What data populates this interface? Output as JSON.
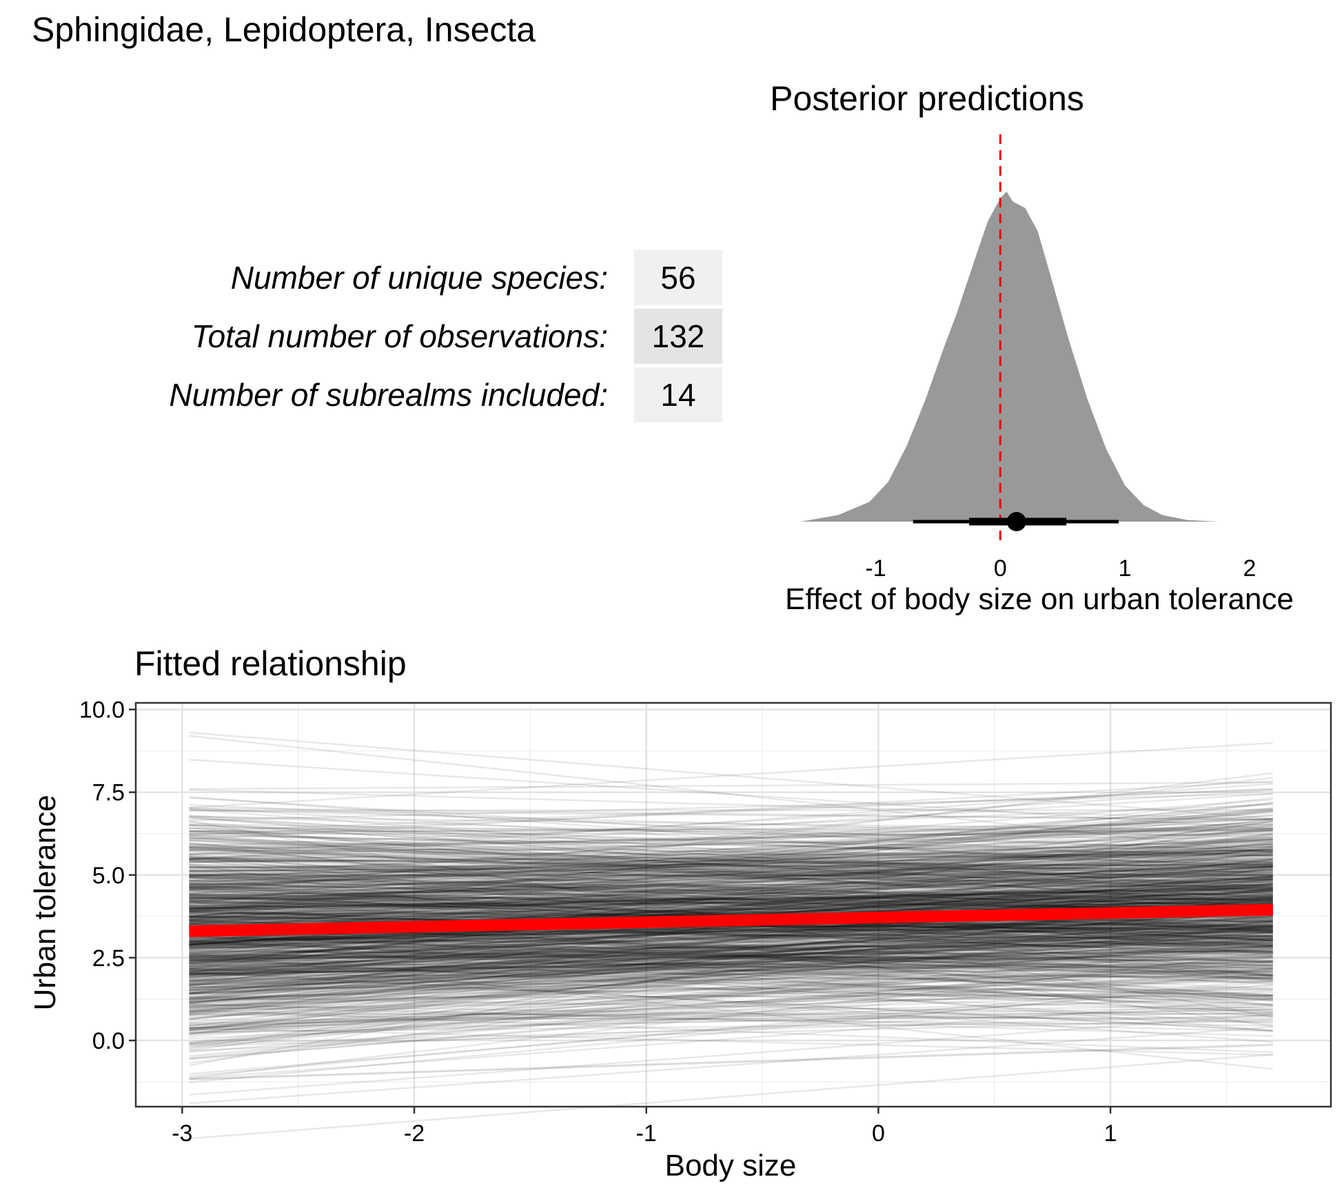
{
  "page_title": "Sphingidae, Lepidoptera, Insecta",
  "stats": [
    {
      "label": "Number of unique species:",
      "value": "56"
    },
    {
      "label": "Total number of observations:",
      "value": "132"
    },
    {
      "label": "Number of subrealms included:",
      "value": "14"
    }
  ],
  "chart_data": [
    {
      "type": "area",
      "title": "Posterior predictions",
      "xlabel": "Effect of body size on urban tolerance",
      "ylabel": "",
      "xlim": [
        -1.6,
        2.05
      ],
      "xticks": [
        "-1",
        "0",
        "1",
        "2"
      ],
      "xtick_values": [
        -1,
        0,
        1,
        2
      ],
      "grid": false,
      "fill_color": "#999999",
      "reference_line": {
        "x": 0,
        "color": "#e8000b",
        "style": "dashed"
      },
      "density": {
        "x": [
          -1.6,
          -1.3,
          -1.05,
          -0.9,
          -0.75,
          -0.6,
          -0.45,
          -0.35,
          -0.2,
          -0.1,
          0.0,
          0.05,
          0.1,
          0.2,
          0.3,
          0.4,
          0.55,
          0.7,
          0.85,
          1.0,
          1.15,
          1.3,
          1.5,
          1.75
        ],
        "y": [
          0.0,
          0.02,
          0.06,
          0.12,
          0.23,
          0.37,
          0.53,
          0.63,
          0.8,
          0.91,
          0.98,
          1.0,
          0.97,
          0.95,
          0.88,
          0.75,
          0.55,
          0.37,
          0.22,
          0.11,
          0.05,
          0.02,
          0.005,
          0.0
        ]
      },
      "point_estimate": 0.13,
      "interval_inner": [
        -0.25,
        0.53
      ],
      "interval_outer": [
        -0.7,
        0.95
      ]
    },
    {
      "type": "line",
      "title": "Fitted relationship",
      "xlabel": "Body size",
      "ylabel": "Urban tolerance",
      "xlim": [
        -3.2,
        1.95
      ],
      "ylim": [
        -2.0,
        10.2
      ],
      "xticks": [
        "-3",
        "-2",
        "-1",
        "0",
        "1"
      ],
      "xtick_values": [
        -3,
        -2,
        -1,
        0,
        1
      ],
      "yticks": [
        "0.0",
        "2.5",
        "5.0",
        "7.5",
        "10.0"
      ],
      "ytick_values": [
        0,
        2.5,
        5,
        7.5,
        10
      ],
      "grid": true,
      "x_range": [
        -2.97,
        1.7
      ],
      "posterior_draws": {
        "count": 900,
        "color": "#000000",
        "opacity": 0.09,
        "center_at_x0": 3.7,
        "spread_at_x0": 1.45,
        "slope_mean": 0.14,
        "slope_sd": 0.35
      },
      "fitted_line": {
        "color": "#ff0000",
        "x": [
          -2.97,
          1.7
        ],
        "y": [
          3.3,
          3.95
        ]
      }
    }
  ]
}
